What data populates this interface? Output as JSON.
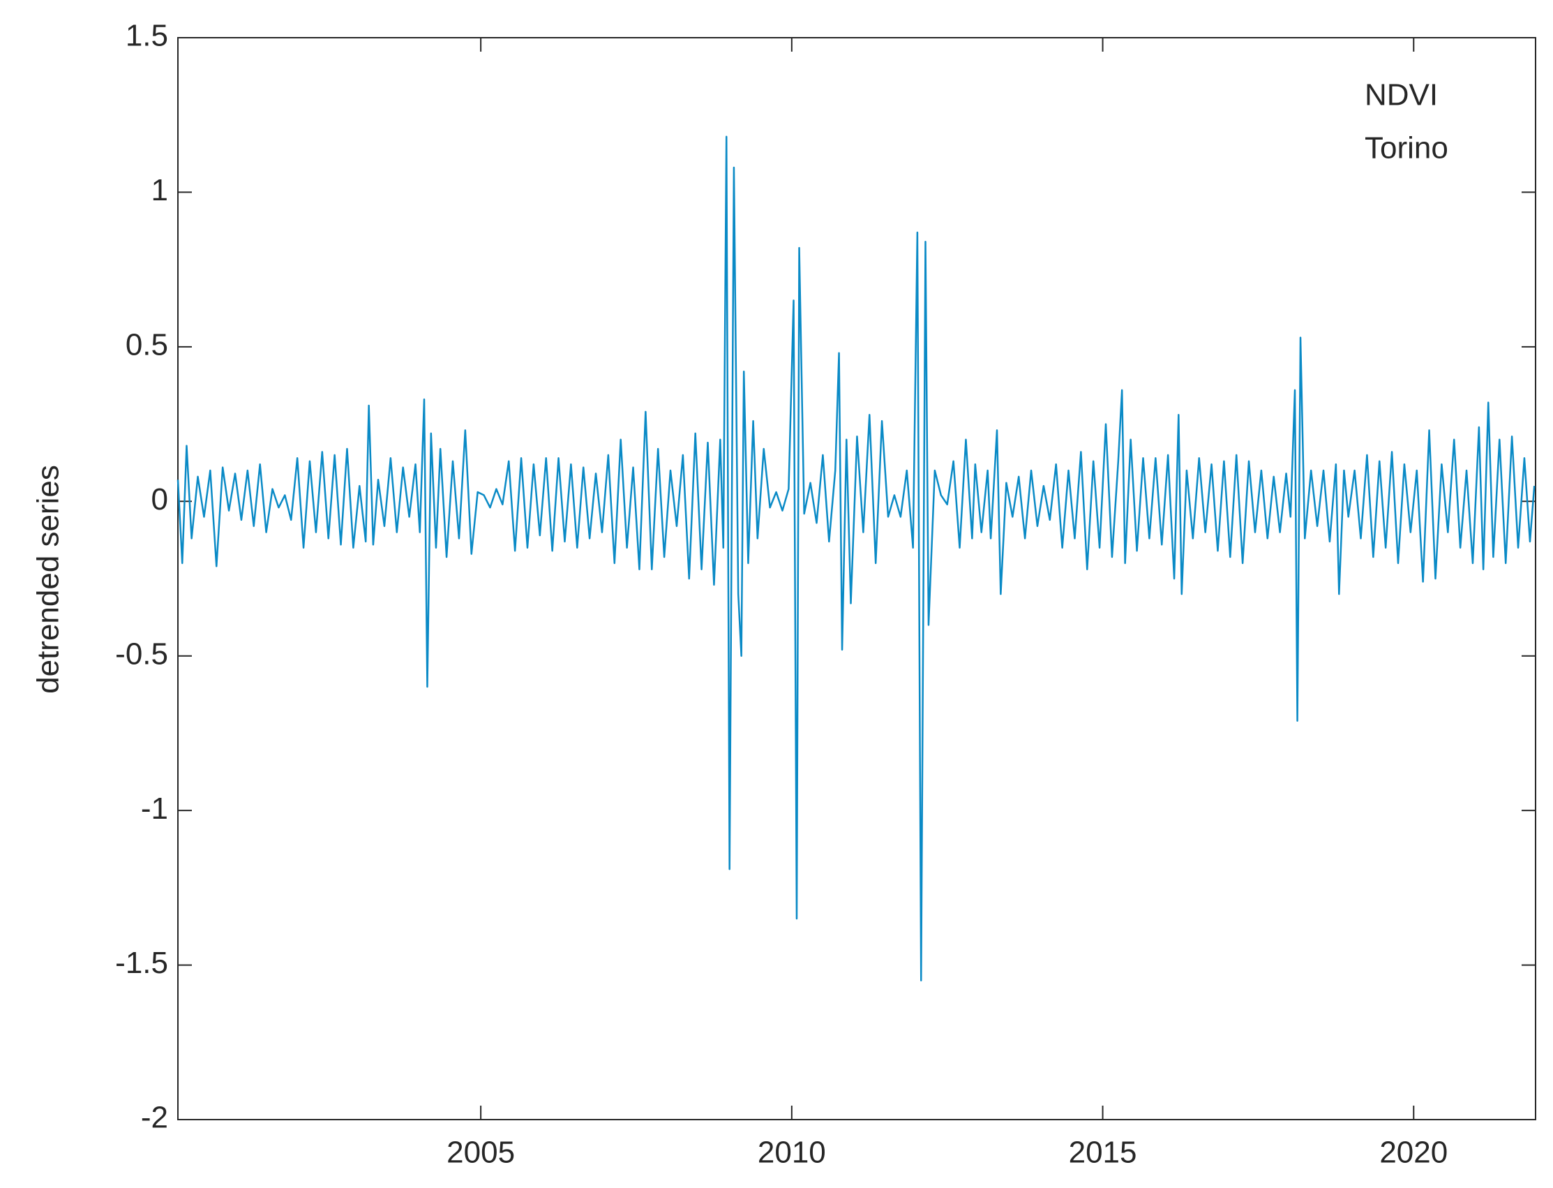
{
  "chart_data": {
    "type": "line",
    "ylabel": "detrended series",
    "annotations": [
      "NDVI",
      "Torino"
    ],
    "color": "#0a8ac6",
    "xlim": [
      2000.13,
      2021.96
    ],
    "xticks": [
      2005,
      2010,
      2015,
      2020
    ],
    "ylim": [
      -2,
      1.5
    ],
    "yticks": [
      -2,
      -1.5,
      -1,
      -0.5,
      0,
      0.5,
      1,
      1.5
    ],
    "grid": false,
    "x": [
      2000.13,
      2000.2,
      2000.27,
      2000.35,
      2000.45,
      2000.55,
      2000.65,
      2000.75,
      2000.85,
      2000.95,
      2001.05,
      2001.15,
      2001.25,
      2001.35,
      2001.45,
      2001.55,
      2001.65,
      2001.75,
      2001.85,
      2001.95,
      2002.05,
      2002.15,
      2002.25,
      2002.35,
      2002.45,
      2002.55,
      2002.65,
      2002.75,
      2002.85,
      2002.95,
      2003.05,
      2003.15,
      2003.2,
      2003.27,
      2003.35,
      2003.45,
      2003.55,
      2003.65,
      2003.75,
      2003.85,
      2003.95,
      2004.02,
      2004.09,
      2004.14,
      2004.2,
      2004.28,
      2004.35,
      2004.45,
      2004.55,
      2004.65,
      2004.75,
      2004.85,
      2004.95,
      2005.05,
      2005.15,
      2005.25,
      2005.35,
      2005.45,
      2005.55,
      2005.65,
      2005.75,
      2005.85,
      2005.95,
      2006.05,
      2006.15,
      2006.25,
      2006.35,
      2006.45,
      2006.55,
      2006.65,
      2006.75,
      2006.85,
      2006.95,
      2007.05,
      2007.15,
      2007.25,
      2007.35,
      2007.45,
      2007.55,
      2007.65,
      2007.75,
      2007.85,
      2007.95,
      2008.05,
      2008.15,
      2008.25,
      2008.35,
      2008.45,
      2008.55,
      2008.65,
      2008.75,
      2008.85,
      2008.9,
      2008.95,
      2009.0,
      2009.07,
      2009.14,
      2009.19,
      2009.23,
      2009.3,
      2009.38,
      2009.45,
      2009.55,
      2009.65,
      2009.75,
      2009.85,
      2009.95,
      2010.03,
      2010.08,
      2010.12,
      2010.2,
      2010.3,
      2010.4,
      2010.5,
      2010.6,
      2010.7,
      2010.76,
      2010.81,
      2010.88,
      2010.95,
      2011.05,
      2011.15,
      2011.25,
      2011.35,
      2011.45,
      2011.55,
      2011.65,
      2011.75,
      2011.85,
      2011.95,
      2012.02,
      2012.08,
      2012.15,
      2012.2,
      2012.3,
      2012.4,
      2012.5,
      2012.6,
      2012.7,
      2012.8,
      2012.9,
      2012.95,
      2013.05,
      2013.15,
      2013.2,
      2013.3,
      2013.36,
      2013.45,
      2013.55,
      2013.65,
      2013.75,
      2013.85,
      2013.95,
      2014.05,
      2014.15,
      2014.25,
      2014.35,
      2014.45,
      2014.55,
      2014.65,
      2014.75,
      2014.85,
      2014.95,
      2015.05,
      2015.15,
      2015.25,
      2015.31,
      2015.36,
      2015.45,
      2015.55,
      2015.65,
      2015.75,
      2015.85,
      2015.95,
      2016.05,
      2016.15,
      2016.22,
      2016.27,
      2016.35,
      2016.45,
      2016.55,
      2016.65,
      2016.75,
      2016.85,
      2016.95,
      2017.05,
      2017.15,
      2017.25,
      2017.35,
      2017.45,
      2017.55,
      2017.65,
      2017.75,
      2017.85,
      2017.95,
      2018.02,
      2018.09,
      2018.13,
      2018.18,
      2018.25,
      2018.35,
      2018.45,
      2018.55,
      2018.65,
      2018.75,
      2018.8,
      2018.88,
      2018.95,
      2019.05,
      2019.15,
      2019.25,
      2019.35,
      2019.45,
      2019.55,
      2019.65,
      2019.75,
      2019.85,
      2019.95,
      2020.05,
      2020.15,
      2020.25,
      2020.35,
      2020.45,
      2020.55,
      2020.65,
      2020.75,
      2020.85,
      2020.95,
      2021.05,
      2021.12,
      2021.2,
      2021.28,
      2021.38,
      2021.48,
      2021.58,
      2021.68,
      2021.78,
      2021.87,
      2021.94
    ],
    "values": [
      0.07,
      -0.2,
      0.18,
      -0.12,
      0.08,
      -0.05,
      0.1,
      -0.21,
      0.11,
      -0.03,
      0.09,
      -0.06,
      0.1,
      -0.08,
      0.12,
      -0.1,
      0.04,
      -0.02,
      0.02,
      -0.06,
      0.14,
      -0.15,
      0.13,
      -0.1,
      0.16,
      -0.12,
      0.15,
      -0.14,
      0.17,
      -0.15,
      0.05,
      -0.13,
      0.31,
      -0.14,
      0.07,
      -0.08,
      0.14,
      -0.1,
      0.11,
      -0.05,
      0.12,
      -0.1,
      0.33,
      -0.6,
      0.22,
      -0.15,
      0.17,
      -0.18,
      0.13,
      -0.12,
      0.23,
      -0.17,
      0.03,
      0.02,
      -0.02,
      0.04,
      -0.01,
      0.13,
      -0.16,
      0.14,
      -0.15,
      0.12,
      -0.11,
      0.14,
      -0.16,
      0.14,
      -0.13,
      0.12,
      -0.15,
      0.11,
      -0.12,
      0.09,
      -0.1,
      0.15,
      -0.2,
      0.2,
      -0.15,
      0.11,
      -0.22,
      0.29,
      -0.22,
      0.17,
      -0.18,
      0.1,
      -0.08,
      0.15,
      -0.25,
      0.22,
      -0.22,
      0.19,
      -0.27,
      0.2,
      -0.15,
      1.18,
      -1.19,
      1.08,
      -0.3,
      -0.5,
      0.42,
      -0.2,
      0.26,
      -0.12,
      0.17,
      -0.02,
      0.03,
      -0.03,
      0.04,
      0.65,
      -1.35,
      0.82,
      -0.04,
      0.06,
      -0.07,
      0.15,
      -0.13,
      0.1,
      0.48,
      -0.48,
      0.2,
      -0.33,
      0.21,
      -0.1,
      0.28,
      -0.2,
      0.26,
      -0.05,
      0.02,
      -0.05,
      0.1,
      -0.15,
      0.87,
      -1.55,
      0.84,
      -0.4,
      0.1,
      0.02,
      -0.01,
      0.13,
      -0.15,
      0.2,
      -0.12,
      0.12,
      -0.1,
      0.1,
      -0.12,
      0.23,
      -0.3,
      0.06,
      -0.05,
      0.08,
      -0.12,
      0.1,
      -0.08,
      0.05,
      -0.06,
      0.12,
      -0.15,
      0.1,
      -0.12,
      0.16,
      -0.22,
      0.13,
      -0.15,
      0.25,
      -0.18,
      0.13,
      0.36,
      -0.2,
      0.2,
      -0.16,
      0.14,
      -0.12,
      0.14,
      -0.14,
      0.15,
      -0.25,
      0.28,
      -0.3,
      0.1,
      -0.12,
      0.14,
      -0.1,
      0.12,
      -0.16,
      0.13,
      -0.18,
      0.15,
      -0.2,
      0.13,
      -0.1,
      0.1,
      -0.12,
      0.08,
      -0.1,
      0.09,
      -0.05,
      0.36,
      -0.71,
      0.53,
      -0.12,
      0.1,
      -0.08,
      0.1,
      -0.13,
      0.12,
      -0.3,
      0.1,
      -0.05,
      0.1,
      -0.12,
      0.15,
      -0.18,
      0.13,
      -0.15,
      0.16,
      -0.2,
      0.12,
      -0.1,
      0.1,
      -0.26,
      0.23,
      -0.25,
      0.12,
      -0.1,
      0.2,
      -0.15,
      0.1,
      -0.2,
      0.24,
      -0.22,
      0.32,
      -0.18,
      0.2,
      -0.2,
      0.21,
      -0.15,
      0.14,
      -0.13,
      0.05
    ]
  }
}
